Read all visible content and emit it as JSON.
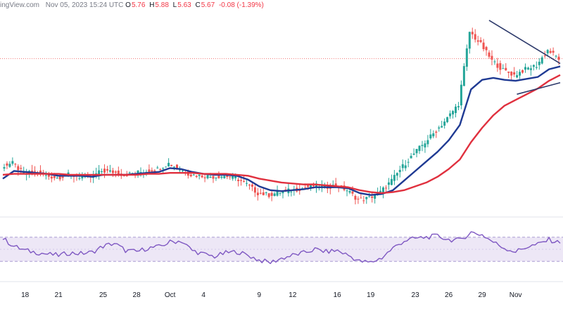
{
  "header": {
    "source": "ingView.com",
    "date": "Nov 05, 2023 15:24 UTC",
    "open_label": "O",
    "open": "5.76",
    "high_label": "H",
    "high": "5.88",
    "low_label": "L",
    "low": "5.63",
    "close_label": "C",
    "close": "5.67",
    "change": "-0.08 (-1.39%)"
  },
  "colors": {
    "up": "#26a69a",
    "down": "#ef5350",
    "ema20": "#1f3a93",
    "ema50": "#e0303e",
    "trendline": "#2d3a6b",
    "rsi": "#7e57c2",
    "rsi_band": "#ede7f6",
    "last_price_line": "#ef5350"
  },
  "chart_data": [
    {
      "type": "candlestick",
      "x": [
        "Sep 16",
        "Sep 17",
        "Sep 18",
        "Sep 19",
        "Sep 20",
        "Sep 21",
        "Sep 22",
        "Sep 23",
        "Sep 24",
        "Sep 25",
        "Sep 26",
        "Sep 27",
        "Sep 28",
        "Sep 29",
        "Sep 30",
        "Oct 1",
        "Oct 2",
        "Oct 3",
        "Oct 4",
        "Oct 5",
        "Oct 6",
        "Oct 7",
        "Oct 8",
        "Oct 9",
        "Oct 10",
        "Oct 11",
        "Oct 12",
        "Oct 13",
        "Oct 14",
        "Oct 15",
        "Oct 16",
        "Oct 17",
        "Oct 18",
        "Oct 19",
        "Oct 20",
        "Oct 21",
        "Oct 22",
        "Oct 23",
        "Oct 24",
        "Oct 25",
        "Oct 26",
        "Oct 27",
        "Oct 28",
        "Oct 29",
        "Oct 30",
        "Oct 31",
        "Nov 1",
        "Nov 2",
        "Nov 3",
        "Nov 4",
        "Nov 5"
      ],
      "x_tick_labels": [
        "18",
        "21",
        "25",
        "28",
        "Oct",
        "4",
        "9",
        "12",
        "16",
        "19",
        "23",
        "26",
        "29",
        "Nov"
      ],
      "series": [
        {
          "name": "",
          "values": [
            4.55,
            4.58,
            4.47,
            4.49,
            4.45,
            4.43,
            4.46,
            4.44,
            4.44,
            4.5,
            4.49,
            4.46,
            4.48,
            4.5,
            4.52,
            4.58,
            4.52,
            4.46,
            4.45,
            4.44,
            4.45,
            4.43,
            4.36,
            4.27,
            4.25,
            4.28,
            4.3,
            4.32,
            4.35,
            4.33,
            4.35,
            4.3,
            4.2,
            4.22,
            4.28,
            4.4,
            4.55,
            4.68,
            4.8,
            4.92,
            5.05,
            5.2,
            5.95,
            5.82,
            5.65,
            5.55,
            5.5,
            5.56,
            5.6,
            5.76,
            5.67
          ]
        }
      ],
      "overlays": [
        {
          "name": "",
          "type": "line",
          "values": [
            4.42,
            4.5,
            4.49,
            4.48,
            4.47,
            4.45,
            4.45,
            4.45,
            4.44,
            4.46,
            4.46,
            4.46,
            4.47,
            4.48,
            4.49,
            4.53,
            4.52,
            4.49,
            4.47,
            4.46,
            4.46,
            4.45,
            4.41,
            4.34,
            4.3,
            4.29,
            4.3,
            4.31,
            4.33,
            4.33,
            4.33,
            4.32,
            4.27,
            4.25,
            4.26,
            4.3,
            4.4,
            4.5,
            4.6,
            4.7,
            4.82,
            4.98,
            5.35,
            5.45,
            5.47,
            5.45,
            5.44,
            5.46,
            5.48,
            5.56,
            5.59
          ]
        },
        {
          "name": "",
          "type": "line",
          "values": [
            4.46,
            4.47,
            4.47,
            4.47,
            4.47,
            4.47,
            4.46,
            4.46,
            4.46,
            4.46,
            4.46,
            4.46,
            4.46,
            4.47,
            4.47,
            4.48,
            4.48,
            4.48,
            4.47,
            4.47,
            4.47,
            4.46,
            4.45,
            4.42,
            4.4,
            4.38,
            4.37,
            4.36,
            4.36,
            4.35,
            4.34,
            4.33,
            4.3,
            4.28,
            4.27,
            4.28,
            4.3,
            4.34,
            4.38,
            4.44,
            4.52,
            4.62,
            4.8,
            4.95,
            5.08,
            5.18,
            5.24,
            5.3,
            5.36,
            5.44,
            5.5
          ]
        }
      ],
      "annotations": [
        "descending trendline from Oct 30 high",
        "ascending trendline from Nov 1 low"
      ]
    },
    {
      "type": "line",
      "title": "",
      "x": [
        "Sep 16",
        "Sep 17",
        "Sep 18",
        "Sep 19",
        "Sep 20",
        "Sep 21",
        "Sep 22",
        "Sep 23",
        "Sep 24",
        "Sep 25",
        "Sep 26",
        "Sep 27",
        "Sep 28",
        "Sep 29",
        "Sep 30",
        "Oct 1",
        "Oct 2",
        "Oct 3",
        "Oct 4",
        "Oct 5",
        "Oct 6",
        "Oct 7",
        "Oct 8",
        "Oct 9",
        "Oct 10",
        "Oct 11",
        "Oct 12",
        "Oct 13",
        "Oct 14",
        "Oct 15",
        "Oct 16",
        "Oct 17",
        "Oct 18",
        "Oct 19",
        "Oct 20",
        "Oct 21",
        "Oct 22",
        "Oct 23",
        "Oct 24",
        "Oct 25",
        "Oct 26",
        "Oct 27",
        "Oct 28",
        "Oct 29",
        "Oct 30",
        "Oct 31",
        "Nov 1",
        "Nov 2",
        "Nov 3",
        "Nov 4",
        "Nov 5"
      ],
      "ylim": [
        0,
        100
      ],
      "band": [
        30,
        70
      ],
      "series": [
        {
          "name": "",
          "values": [
            68,
            55,
            48,
            45,
            42,
            40,
            44,
            43,
            45,
            55,
            60,
            48,
            46,
            52,
            54,
            62,
            64,
            48,
            42,
            38,
            44,
            46,
            40,
            32,
            28,
            35,
            40,
            44,
            50,
            46,
            48,
            40,
            30,
            28,
            36,
            52,
            64,
            68,
            70,
            72,
            66,
            65,
            78,
            74,
            62,
            52,
            46,
            54,
            58,
            66,
            60
          ]
        }
      ]
    }
  ]
}
